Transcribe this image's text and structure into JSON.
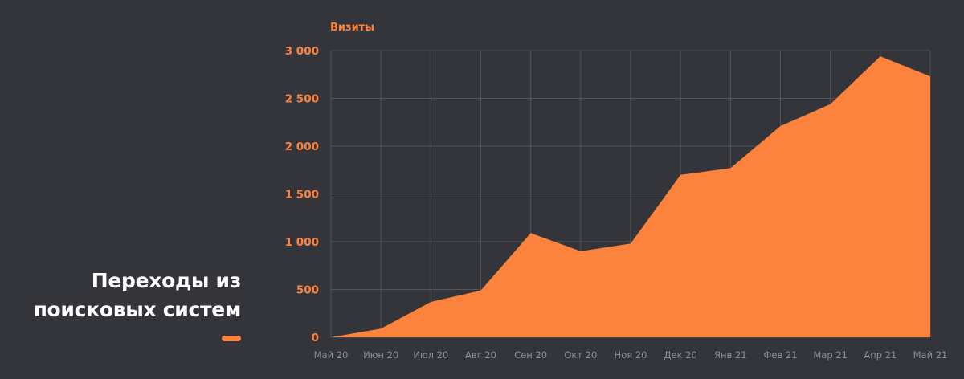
{
  "title": {
    "line1": "Переходы из",
    "line2": "поисковых систем"
  },
  "colors": {
    "background": "#33353b",
    "accent": "#fc833d",
    "grid": "#52545a",
    "xtick": "#8c8e94",
    "title": "#ffffff"
  },
  "chart_data": {
    "type": "area",
    "ylabel": "Визиты",
    "xlabel": "",
    "ylim": [
      0,
      3000
    ],
    "yticks": [
      0,
      500,
      1000,
      1500,
      2000,
      2500,
      3000
    ],
    "ytick_labels": [
      "0",
      "500",
      "1 000",
      "1 500",
      "2 000",
      "2 500",
      "3 000"
    ],
    "categories": [
      "Май 20",
      "Июн 20",
      "Июл 20",
      "Авг 20",
      "Сен 20",
      "Окт 20",
      "Ноя 20",
      "Дек 20",
      "Янв 21",
      "Фев 21",
      "Мар 21",
      "Апр 21",
      "Май 21"
    ],
    "series": [
      {
        "values": [
          0,
          90,
          370,
          490,
          1090,
          900,
          980,
          1700,
          1770,
          2210,
          2440,
          2940,
          2730
        ]
      }
    ],
    "grid": true,
    "legend": "none"
  }
}
